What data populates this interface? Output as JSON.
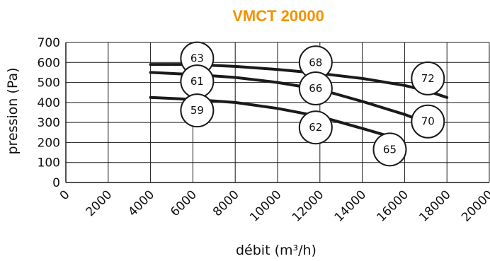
{
  "chart_data": {
    "type": "line",
    "title": "VMCT 20000",
    "xlabel": "débit (m³/h)",
    "ylabel": "pression (Pa)",
    "xlim": [
      0,
      20000
    ],
    "ylim": [
      0,
      700
    ],
    "xticks": [
      0,
      2000,
      4000,
      6000,
      8000,
      10000,
      12000,
      14000,
      16000,
      18000,
      20000
    ],
    "yticks": [
      0,
      100,
      200,
      300,
      400,
      500,
      600,
      700
    ],
    "grid": true,
    "series": [
      {
        "x": [
          4000,
          6000,
          8000,
          10000,
          12000,
          14000,
          16000,
          17000,
          18000
        ],
        "y": [
          590,
          590,
          580,
          565,
          545,
          520,
          485,
          460,
          425
        ]
      },
      {
        "x": [
          4000,
          6000,
          8000,
          10000,
          12000,
          14000,
          16000,
          17000
        ],
        "y": [
          550,
          540,
          525,
          500,
          465,
          405,
          340,
          300
        ]
      },
      {
        "x": [
          4000,
          6000,
          8000,
          10000,
          12000,
          14000,
          15300
        ],
        "y": [
          425,
          415,
          400,
          370,
          330,
          270,
          230
        ]
      }
    ],
    "annotations": [
      {
        "label": "63",
        "x": 6200,
        "y": 620
      },
      {
        "label": "61",
        "x": 6200,
        "y": 505
      },
      {
        "label": "59",
        "x": 6200,
        "y": 360
      },
      {
        "label": "68",
        "x": 11800,
        "y": 600
      },
      {
        "label": "66",
        "x": 11800,
        "y": 470
      },
      {
        "label": "62",
        "x": 11800,
        "y": 275
      },
      {
        "label": "72",
        "x": 17100,
        "y": 520
      },
      {
        "label": "70",
        "x": 17100,
        "y": 305
      },
      {
        "label": "65",
        "x": 15300,
        "y": 165
      }
    ],
    "colors": {
      "title": "#f39200",
      "lines": "#1a1a1a",
      "grid": "#1a1a1a"
    }
  }
}
